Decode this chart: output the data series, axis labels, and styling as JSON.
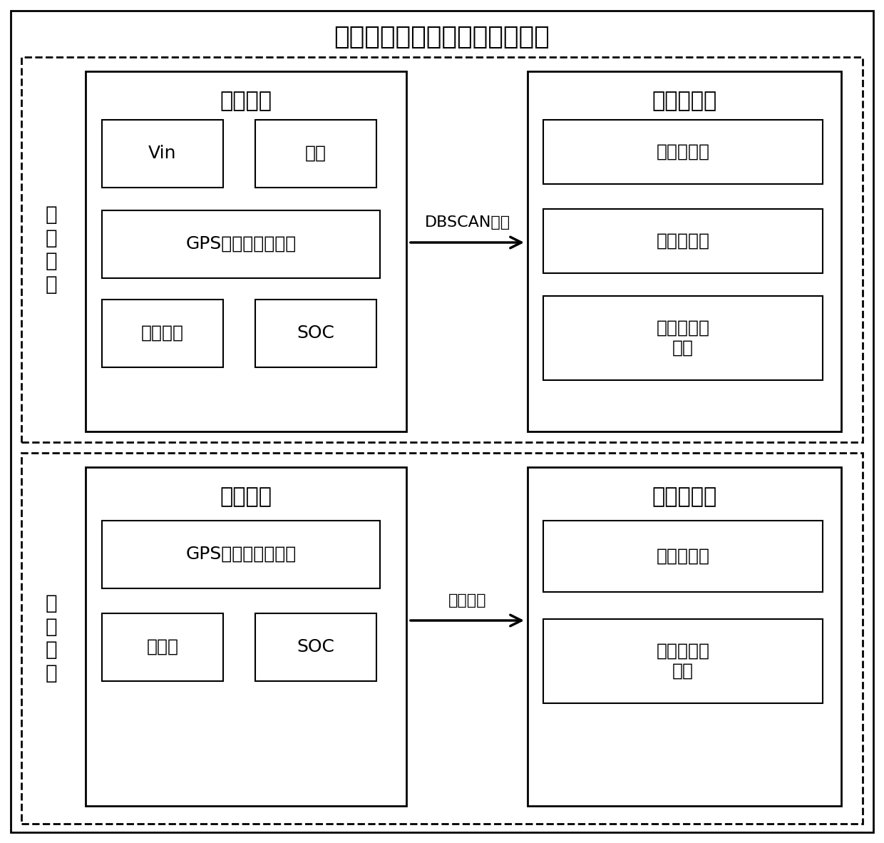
{
  "title": "新能源汽车国家监测与管理平台",
  "title_fontsize": 26,
  "bg_color": "#ffffff",
  "border_color": "#000000",
  "section1_label": "静\n态\n计\n算",
  "section2_label": "动\n态\n计\n算",
  "top_left_title": "平台数据",
  "top_right_title": "充电站信息",
  "bottom_left_title": "车辆数据",
  "bottom_right_title": "充电站信息",
  "top_arrow_label": "DBSCAN算法",
  "bottom_arrow_label": "遗传算法",
  "font_size_title_box": 22,
  "font_size_label": 18,
  "font_size_arrow": 16,
  "font_size_section": 20,
  "font_size_main_title": 26
}
